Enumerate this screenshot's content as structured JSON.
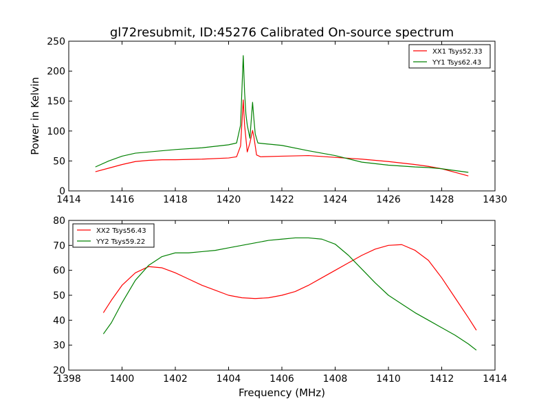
{
  "figure": {
    "title": "gl72resubmit, ID:45276 Calibrated On-source spectrum",
    "xlabel": "Frequency (MHz)",
    "background": "#ffffff"
  },
  "chart_data": [
    {
      "type": "line",
      "ylabel": "Power in Kelvin",
      "xlabel": "",
      "xlim": [
        1414,
        1430
      ],
      "ylim": [
        0,
        250
      ],
      "xticks": [
        1414,
        1416,
        1418,
        1420,
        1422,
        1424,
        1426,
        1428,
        1430
      ],
      "yticks": [
        0,
        50,
        100,
        150,
        200,
        250
      ],
      "legend_position": "top-right",
      "series": [
        {
          "name": "XX1 Tsys52.33",
          "color": "#ff0000",
          "x": [
            1415.0,
            1415.5,
            1416.0,
            1416.5,
            1417.0,
            1417.5,
            1418.0,
            1419.0,
            1420.0,
            1420.3,
            1420.45,
            1420.55,
            1420.6,
            1420.7,
            1420.8,
            1420.9,
            1420.95,
            1421.05,
            1421.2,
            1422.0,
            1423.0,
            1424.0,
            1425.0,
            1426.0,
            1427.0,
            1427.5,
            1428.0,
            1428.5,
            1429.0
          ],
          "y": [
            32,
            38,
            44,
            49,
            51,
            52,
            52,
            53,
            55,
            57,
            75,
            152,
            110,
            65,
            80,
            101,
            90,
            60,
            57,
            58,
            59,
            56,
            53,
            49,
            44,
            41,
            37,
            31,
            25
          ]
        },
        {
          "name": "YY1 Tsys62.43",
          "color": "#008000",
          "x": [
            1415.0,
            1415.5,
            1416.0,
            1416.5,
            1417.0,
            1417.5,
            1418.0,
            1419.0,
            1420.0,
            1420.3,
            1420.45,
            1420.55,
            1420.6,
            1420.65,
            1420.7,
            1420.8,
            1420.9,
            1420.95,
            1421.0,
            1421.1,
            1421.3,
            1422.0,
            1423.0,
            1424.0,
            1425.0,
            1426.0,
            1427.0,
            1427.5,
            1428.0,
            1428.5,
            1429.0
          ],
          "y": [
            40,
            50,
            58,
            63,
            65,
            67,
            69,
            72,
            77,
            80,
            110,
            226,
            165,
            128,
            110,
            88,
            148,
            120,
            95,
            80,
            79,
            76,
            67,
            59,
            48,
            43,
            40,
            39,
            37,
            34,
            31
          ]
        }
      ]
    },
    {
      "type": "line",
      "ylabel": "",
      "xlabel": "Frequency (MHz)",
      "xlim": [
        1398,
        1414
      ],
      "ylim": [
        20,
        80
      ],
      "xticks": [
        1398,
        1400,
        1402,
        1404,
        1406,
        1408,
        1410,
        1412,
        1414
      ],
      "yticks": [
        20,
        30,
        40,
        50,
        60,
        70,
        80
      ],
      "legend_position": "top-left",
      "series": [
        {
          "name": "XX2 Tsys56.43",
          "color": "#ff0000",
          "x": [
            1399.3,
            1399.6,
            1400.0,
            1400.5,
            1401.0,
            1401.5,
            1402.0,
            1402.5,
            1403.0,
            1403.5,
            1404.0,
            1404.5,
            1405.0,
            1405.5,
            1406.0,
            1406.5,
            1407.0,
            1407.5,
            1408.0,
            1408.5,
            1409.0,
            1409.5,
            1410.0,
            1410.5,
            1411.0,
            1411.5,
            1412.0,
            1412.5,
            1413.0,
            1413.3
          ],
          "y": [
            43,
            48,
            54,
            59,
            61.5,
            61,
            59,
            56.5,
            54,
            52,
            50,
            49,
            48.7,
            49,
            50,
            51.5,
            54,
            57,
            60,
            63,
            66,
            68.5,
            70,
            70.3,
            68,
            64,
            57,
            49,
            41,
            36
          ]
        },
        {
          "name": "YY2 Tsys59.22",
          "color": "#008000",
          "x": [
            1399.3,
            1399.6,
            1400.0,
            1400.5,
            1401.0,
            1401.5,
            1402.0,
            1402.5,
            1403.0,
            1403.5,
            1404.0,
            1404.5,
            1405.0,
            1405.5,
            1406.0,
            1406.5,
            1407.0,
            1407.5,
            1408.0,
            1408.5,
            1409.0,
            1409.5,
            1410.0,
            1410.5,
            1411.0,
            1411.5,
            1412.0,
            1412.5,
            1413.0,
            1413.3
          ],
          "y": [
            34.5,
            39,
            47,
            56,
            62,
            65.5,
            67,
            67,
            67.5,
            68,
            69,
            70,
            71,
            72,
            72.5,
            73,
            73,
            72.5,
            70.5,
            66,
            60.5,
            55,
            50,
            46.5,
            43,
            40,
            37,
            34,
            30.5,
            28
          ]
        }
      ]
    }
  ]
}
